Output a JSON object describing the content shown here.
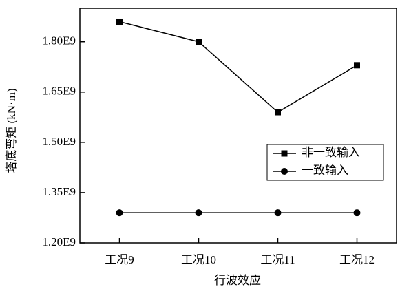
{
  "chart_data": {
    "type": "line",
    "x_label": "行波效应",
    "y_label": "塔底弯矩 (kN·m)",
    "categories": [
      "工况9",
      "工况10",
      "工况11",
      "工况12"
    ],
    "series": [
      {
        "name": "非一致输入",
        "color": "#000000",
        "marker": "square",
        "values": [
          1860000000.0,
          1800000000.0,
          1590000000.0,
          1730000000.0
        ]
      },
      {
        "name": "一致输入",
        "color": "#000000",
        "marker": "circle",
        "values": [
          1290000000.0,
          1290000000.0,
          1290000000.0,
          1290000000.0
        ]
      }
    ],
    "ylim": [
      1200000000.0,
      1900000000.0
    ],
    "yticks": [
      {
        "value": 1200000000.0,
        "label": "1.20E9"
      },
      {
        "value": 1350000000.0,
        "label": "1.35E9"
      },
      {
        "value": 1500000000.0,
        "label": "1.50E9"
      },
      {
        "value": 1650000000.0,
        "label": "1.65E9"
      },
      {
        "value": 1800000000.0,
        "label": "1.80E9"
      }
    ],
    "legend": "right"
  }
}
